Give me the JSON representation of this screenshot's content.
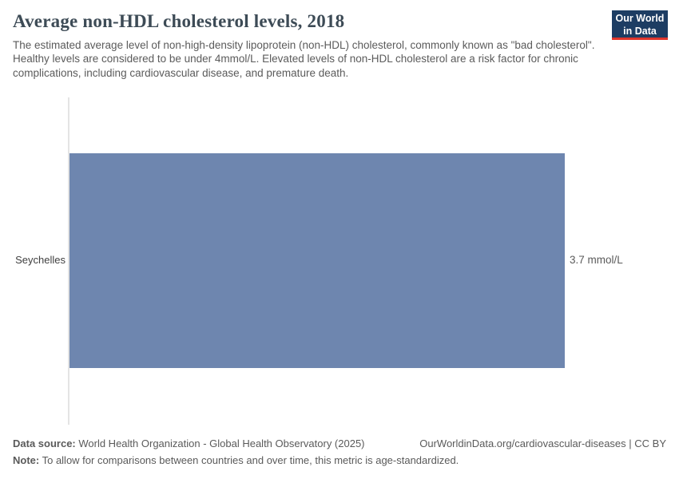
{
  "header": {
    "title": "Average non-HDL cholesterol levels, 2018",
    "subtitle": "The estimated average level of non-high-density lipoprotein (non-HDL) cholesterol, commonly known as \"bad cholesterol\". Healthy levels are considered to be under 4mmol/L. Elevated levels of non-HDL cholesterol are a risk factor for chronic complications, including cardiovascular disease, and premature death.",
    "logo": {
      "line1": "Our World",
      "line2": "in Data"
    }
  },
  "chart_data": {
    "type": "bar",
    "orientation": "horizontal",
    "title": "Average non-HDL cholesterol levels, 2018",
    "categories": [
      "Seychelles"
    ],
    "values": [
      3.7
    ],
    "value_labels": [
      "3.7 mmol/L"
    ],
    "unit": "mmol/L",
    "xlim": [
      0,
      3.7
    ],
    "grid": false,
    "legend": "none",
    "bar_color": "#6e86af",
    "axis_line_color": "#e4e4e4"
  },
  "footer": {
    "data_source_label": "Data source:",
    "data_source_text": " World Health Organization - Global Health Observatory (2025)",
    "attribution": "OurWorldinData.org/cardiovascular-diseases | CC BY",
    "note_label": "Note:",
    "note_text": " To allow for comparisons between countries and over time, this metric is age-standardized."
  },
  "colors": {
    "bar": "#6e86af",
    "logo_background": "#1d3d63",
    "logo_underline": "#e0362c",
    "title_text": "#3d4b56",
    "body_text": "#5b5b5b",
    "axis_line": "#e4e4e4"
  }
}
